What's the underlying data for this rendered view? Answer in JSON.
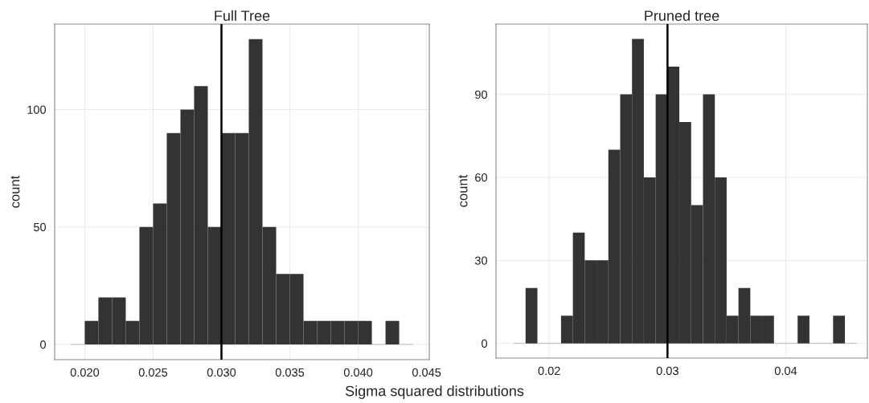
{
  "chart_data": [
    {
      "type": "histogram",
      "title": "Full Tree",
      "ylabel": "count",
      "xlabel": "Sigma squared distributions",
      "bins": [
        0.019,
        0.02,
        0.021,
        0.022,
        0.023,
        0.024,
        0.025,
        0.026,
        0.027,
        0.028,
        0.029,
        0.03,
        0.031,
        0.032,
        0.033,
        0.034,
        0.035,
        0.036,
        0.037,
        0.038,
        0.039,
        0.04,
        0.041,
        0.042,
        0.043,
        0.044
      ],
      "values": [
        0,
        10,
        20,
        20,
        10,
        50,
        60,
        90,
        100,
        110,
        50,
        90,
        90,
        130,
        50,
        30,
        30,
        10,
        10,
        10,
        10,
        10,
        0,
        10,
        0
      ],
      "color": "#333333",
      "xlim": [
        0.0178,
        0.0452
      ],
      "ylim": [
        -6.5,
        136.4
      ],
      "xticks": [
        {
          "value": 0.02,
          "label": "0.020"
        },
        {
          "value": 0.025,
          "label": "0.025"
        },
        {
          "value": 0.03,
          "label": "0.030"
        },
        {
          "value": 0.035,
          "label": "0.035"
        },
        {
          "value": 0.04,
          "label": "0.040"
        },
        {
          "value": 0.045,
          "label": "0.045"
        }
      ],
      "yticks": [
        0,
        50,
        100
      ],
      "ref_lines": [
        {
          "axis": "x",
          "value": 0.03,
          "color": "#000000"
        }
      ],
      "grid": true
    },
    {
      "type": "histogram",
      "title": "Pruned tree",
      "ylabel": "count",
      "bins": [
        0.017,
        0.018,
        0.019,
        0.02,
        0.021,
        0.022,
        0.023,
        0.024,
        0.025,
        0.026,
        0.027,
        0.028,
        0.029,
        0.03,
        0.031,
        0.032,
        0.033,
        0.034,
        0.035,
        0.036,
        0.037,
        0.038,
        0.039,
        0.04,
        0.041,
        0.042,
        0.043,
        0.044,
        0.045,
        0.046
      ],
      "values": [
        0,
        20,
        0,
        0,
        10,
        40,
        30,
        30,
        70,
        90,
        110,
        60,
        90,
        100,
        80,
        50,
        90,
        60,
        10,
        20,
        10,
        10,
        0,
        0,
        10,
        0,
        0,
        10,
        0
      ],
      "color": "#333333",
      "xlim": [
        0.0155,
        0.0469
      ],
      "ylim": [
        -5.3,
        115.4
      ],
      "xticks": [
        0.02,
        0.03,
        0.04
      ],
      "yticks": [
        0,
        30,
        60,
        90
      ],
      "ref_lines": [
        {
          "axis": "x",
          "value": 0.03,
          "color": "#000000"
        }
      ],
      "grid": true
    }
  ]
}
